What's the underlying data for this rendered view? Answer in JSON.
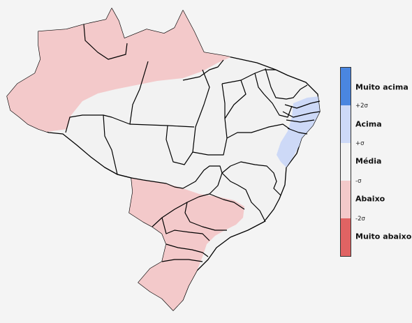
{
  "legend": {
    "categories": [
      {
        "label": "Muito acima",
        "color": "#4a86e0"
      },
      {
        "label": "Acima",
        "color": "#cdd9f7"
      },
      {
        "label": "Média",
        "color": "#f2f2f2"
      },
      {
        "label": "Abaixo",
        "color": "#f3c9ca"
      },
      {
        "label": "Muito abaixo",
        "color": "#e06363"
      }
    ],
    "ticks": [
      "+2σ",
      "+σ",
      "-σ",
      "-2σ"
    ]
  },
  "map": {
    "land_color": "#f2f2f2",
    "background_color": "#f4f4f4",
    "border_color": "#000000",
    "regions_above_average": [
      "Nordeste litoral leste"
    ],
    "regions_below_average": [
      "Norte (Amazonas, Roraima, Pará norte, Amapá)",
      "Centro-Oeste sul",
      "Sudeste oeste",
      "Sul"
    ]
  }
}
